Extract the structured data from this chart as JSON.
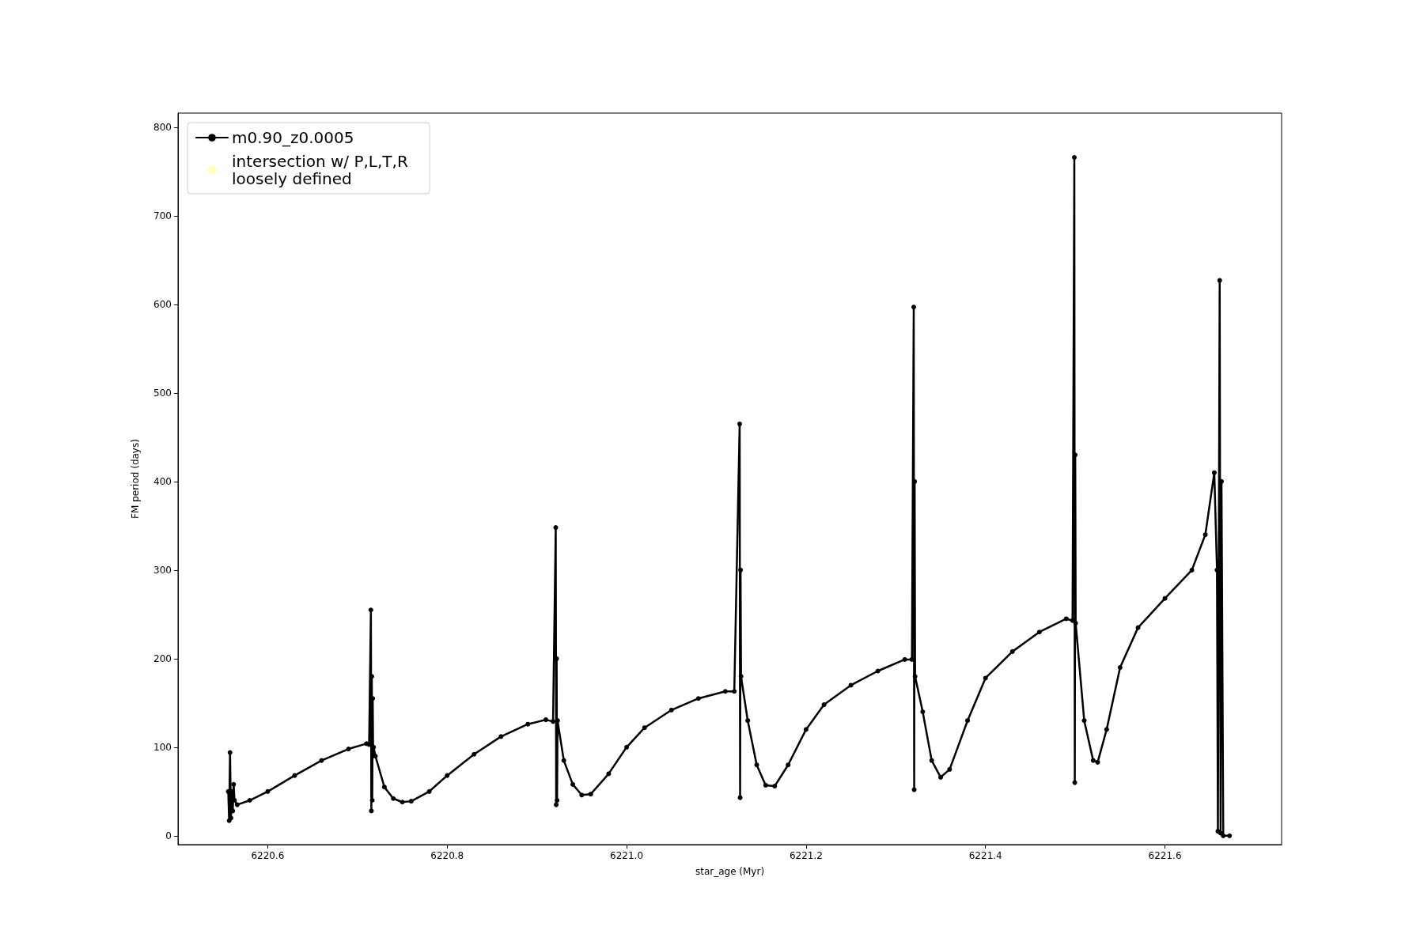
{
  "chart_data": {
    "type": "line",
    "xlabel": "star_age (Myr)",
    "ylabel": "FM period (days)",
    "xlim": [
      6220.5,
      6221.73
    ],
    "xticks": [
      6220.6,
      6220.8,
      {
        "value": 6221.0,
        "label": "6221.0"
      },
      6221.2,
      6221.4,
      6221.6
    ],
    "ylim": [
      -10,
      816
    ],
    "yticks": [
      0,
      100,
      200,
      300,
      400,
      500,
      600,
      700,
      800
    ],
    "grid": false,
    "legend": "top left",
    "marker": "circle",
    "line_style": "solid",
    "series": [
      {
        "name": "m0.90_z0.0005",
        "color": "#000000",
        "x": [
          6220.556,
          6220.557,
          6220.558,
          6220.559,
          6220.56,
          6220.561,
          6220.562,
          6220.563,
          6220.566,
          6220.58,
          6220.6,
          6220.63,
          6220.66,
          6220.69,
          6220.71,
          6220.713,
          6220.715,
          6220.7155,
          6220.716,
          6220.7165,
          6220.717,
          6220.7175,
          6220.718,
          6220.72,
          6220.73,
          6220.74,
          6220.75,
          6220.76,
          6220.78,
          6220.8,
          6220.83,
          6220.86,
          6220.89,
          6220.91,
          6220.918,
          6220.921,
          6220.9215,
          6220.922,
          6220.9225,
          6220.923,
          6220.93,
          6220.94,
          6220.95,
          6220.96,
          6220.98,
          6221.0,
          6221.02,
          6221.05,
          6221.08,
          6221.11,
          6221.12,
          6221.126,
          6221.1265,
          6221.127,
          6221.1275,
          6221.135,
          6221.145,
          6221.155,
          6221.165,
          6221.18,
          6221.2,
          6221.22,
          6221.25,
          6221.28,
          6221.31,
          6221.318,
          6221.32,
          6221.3205,
          6221.321,
          6221.3215,
          6221.33,
          6221.34,
          6221.35,
          6221.36,
          6221.38,
          6221.4,
          6221.43,
          6221.46,
          6221.49,
          6221.497,
          6221.499,
          6221.4995,
          6221.5,
          6221.5005,
          6221.51,
          6221.52,
          6221.525,
          6221.535,
          6221.55,
          6221.57,
          6221.6,
          6221.63,
          6221.645,
          6221.655,
          6221.658,
          6221.659,
          6221.661,
          6221.662,
          6221.663,
          6221.665,
          6221.672
        ],
        "values": [
          50,
          17,
          94,
          20,
          50,
          28,
          58,
          40,
          35,
          40,
          50,
          68,
          85,
          98,
          104,
          103,
          255,
          28,
          180,
          40,
          155,
          90,
          100,
          90,
          55,
          42,
          38,
          39,
          50,
          68,
          92,
          112,
          126,
          131,
          129,
          348,
          35,
          200,
          40,
          130,
          85,
          58,
          46,
          47,
          70,
          100,
          122,
          142,
          155,
          163,
          163,
          465,
          43,
          300,
          180,
          130,
          80,
          57,
          56,
          80,
          120,
          148,
          170,
          186,
          199,
          199,
          597,
          52,
          400,
          180,
          140,
          85,
          66,
          75,
          130,
          178,
          208,
          230,
          245,
          243,
          766,
          60,
          430,
          240,
          130,
          85,
          83,
          120,
          190,
          235,
          268,
          300,
          340,
          410,
          300,
          5,
          627,
          3,
          400,
          0,
          0
        ]
      },
      {
        "name": "intersection w/ P,L,T,R loosely defined",
        "color": "#ffffb3",
        "type": "scatter"
      }
    ]
  }
}
